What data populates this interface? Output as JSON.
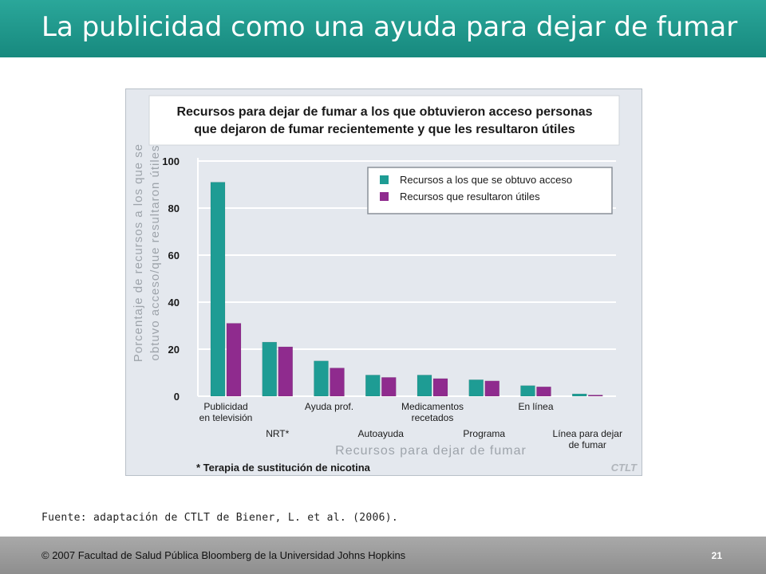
{
  "slide": {
    "title": "La publicidad como una ayuda para dejar de fumar",
    "source": "Fuente: adaptación de CTLT de Biener, L. et al. (2006).",
    "footer": "© 2007 Facultad de Salud Pública Bloomberg de la Universidad Johns Hopkins",
    "page_number": "21"
  },
  "chart_data": {
    "type": "bar",
    "title_lines": [
      "Recursos para dejar de fumar a los que obtuvieron acceso personas",
      "que dejaron de fumar recientemente y que les resultaron útiles"
    ],
    "ylabel_lines": [
      "Porcentaje de recursos a los que se",
      "obtuvo acceso/que resultaron útiles"
    ],
    "xlabel": "Recursos para dejar de fumar",
    "footnote": "* Terapia de sustitución de nicotina",
    "watermark": "CTLT",
    "ylim": [
      0,
      100
    ],
    "yticks": [
      0,
      20,
      40,
      60,
      80,
      100
    ],
    "grid": true,
    "legend_position": "top-right",
    "categories": [
      [
        "Publicidad",
        "en televisión"
      ],
      [
        "NRT*"
      ],
      [
        "Ayuda prof."
      ],
      [
        "Autoayuda"
      ],
      [
        "Medicamentos",
        "recetados"
      ],
      [
        "Programa"
      ],
      [
        "En línea"
      ],
      [
        "Línea para dejar",
        "de fumar"
      ]
    ],
    "category_label_row": [
      0,
      1,
      0,
      1,
      0,
      1,
      0,
      1
    ],
    "series": [
      {
        "name": "Recursos a los que se obtuvo acceso",
        "color": "#1e9c94",
        "values": [
          91,
          23,
          15,
          9,
          9,
          7,
          4.5,
          1
        ]
      },
      {
        "name": "Recursos que resultaron útiles",
        "color": "#8f2b8e",
        "values": [
          31,
          21,
          12,
          8,
          7.5,
          6.5,
          4,
          0.5
        ]
      }
    ]
  }
}
